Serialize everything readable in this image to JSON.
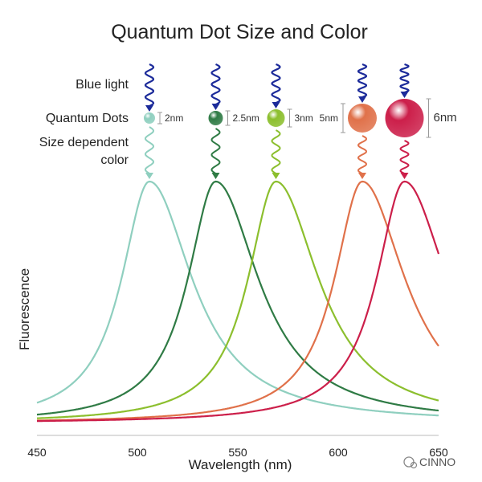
{
  "chart_data": {
    "type": "line",
    "title": "Quantum Dot Size and Color",
    "xlabel": "Wavelength (nm)",
    "ylabel": "Fluorescence",
    "xlim": [
      450,
      650
    ],
    "x_ticks": [
      450,
      500,
      550,
      600,
      650
    ],
    "ylim": [
      0,
      1
    ],
    "grid": false,
    "row_labels": {
      "blue_light": "Blue light",
      "quantum_dots": "Quantum Dots",
      "size_color_line1": "Size dependent",
      "size_color_line2": "color"
    },
    "excitation_color": "#1c2b9a",
    "series": [
      {
        "dot_size_label": "2nm",
        "peak": 506,
        "color": "#8fcfbf"
      },
      {
        "dot_size_label": "2.5nm",
        "peak": 539,
        "color": "#2f7b45"
      },
      {
        "dot_size_label": "3nm",
        "peak": 569,
        "color": "#8cbf2e"
      },
      {
        "dot_size_label": "5nm",
        "peak": 612,
        "color": "#e0714a"
      },
      {
        "dot_size_label": "6nm",
        "peak": 633,
        "color": "#cc1f4a"
      }
    ],
    "watermark": "CINNO"
  }
}
